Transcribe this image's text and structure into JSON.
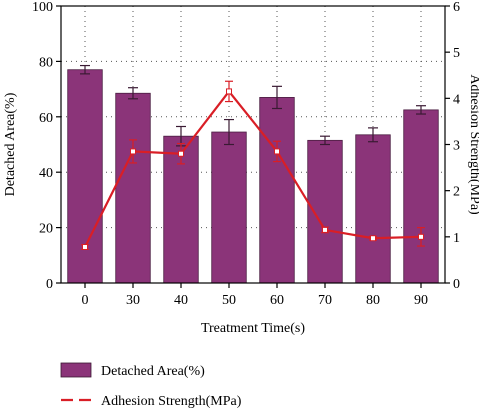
{
  "chart_data": {
    "type": "bar",
    "title": "",
    "categories": [
      "0",
      "30",
      "40",
      "50",
      "60",
      "70",
      "80",
      "90"
    ],
    "xlabel": "Treatment Time(s)",
    "ylabel": "Detached Area(%)",
    "y2label": "Adhesion Strength(MPa)",
    "ylim": [
      0,
      100
    ],
    "y2lim": [
      0,
      6
    ],
    "yticks": [
      "0",
      "20",
      "40",
      "60",
      "80",
      "100"
    ],
    "y2ticks": [
      "0",
      "1",
      "2",
      "3",
      "4",
      "5",
      "6"
    ],
    "grid": true,
    "legend_position": "bottom",
    "series": [
      {
        "name": "Detached Area(%)",
        "kind": "bar",
        "axis": "left",
        "color": "#8b3479",
        "values": [
          77,
          68.5,
          53,
          54.5,
          67,
          51.5,
          53.5,
          62.5
        ],
        "errors": [
          1.5,
          2,
          3.5,
          4.5,
          4,
          1.5,
          2.5,
          1.5
        ]
      },
      {
        "name": "Adhesion Strength(MPa)",
        "kind": "line",
        "axis": "right",
        "color": "#d91e26",
        "values": [
          0.78,
          2.85,
          2.8,
          4.15,
          2.85,
          1.15,
          0.97,
          1.0
        ],
        "errors": [
          0.05,
          0.25,
          0.22,
          0.22,
          0.22,
          0.06,
          0.04,
          0.2
        ]
      }
    ]
  }
}
